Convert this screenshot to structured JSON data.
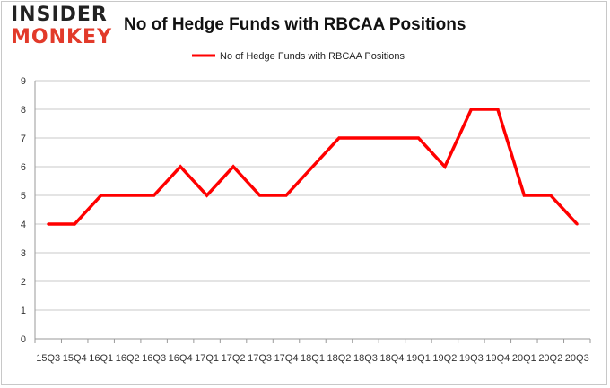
{
  "logo": {
    "line1": "INSIDER",
    "line2": "MONKEY"
  },
  "chart_data": {
    "type": "line",
    "title": "No of Hedge Funds with RBCAA Positions",
    "xlabel": "",
    "ylabel": "",
    "categories": [
      "15Q3",
      "15Q4",
      "16Q1",
      "16Q2",
      "16Q3",
      "16Q4",
      "17Q1",
      "17Q2",
      "17Q3",
      "17Q4",
      "18Q1",
      "18Q2",
      "18Q3",
      "18Q4",
      "19Q1",
      "19Q2",
      "19Q3",
      "19Q4",
      "20Q1",
      "20Q2",
      "20Q3"
    ],
    "series": [
      {
        "name": "No of Hedge Funds with RBCAA Positions",
        "color": "#ff0000",
        "values": [
          4,
          4,
          5,
          5,
          5,
          6,
          5,
          6,
          5,
          5,
          6,
          7,
          7,
          7,
          7,
          6,
          8,
          8,
          5,
          5,
          4
        ]
      }
    ],
    "ylim": [
      0,
      9
    ],
    "yticks": [
      0,
      1,
      2,
      3,
      4,
      5,
      6,
      7,
      8,
      9
    ],
    "grid": true,
    "legend_position": "top-center"
  }
}
